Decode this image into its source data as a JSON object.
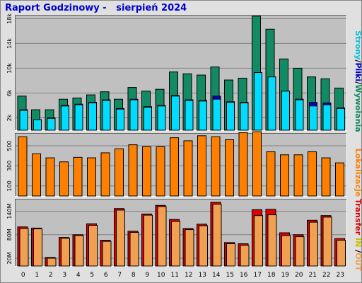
{
  "title": "Raport Godzinowy -   sierpień 2024",
  "colors": {
    "panel_bg": "#c0c0c0",
    "grid": "#808080",
    "hits": "#128a64",
    "files": "#0000cc",
    "pages": "#00dcff",
    "volume": "#ff8000",
    "kb_in": "#dd0000",
    "kb_out": "#f0a050"
  },
  "legend": {
    "top": [
      {
        "text": "Strony",
        "color": "#00c0e0"
      },
      {
        "text": "/",
        "color": "#000000"
      },
      {
        "text": "Pliki",
        "color": "#0000cc"
      },
      {
        "text": "/",
        "color": "#000000"
      },
      {
        "text": "Wywołania",
        "color": "#128a64"
      }
    ],
    "middle": [
      {
        "text": "Lokalizacje",
        "color": "#ff8000"
      }
    ],
    "bottom": [
      {
        "text": "Transfer",
        "color": "#dd0000"
      },
      {
        "text": " IN ",
        "color": "#d0c000"
      },
      {
        "text": "/",
        "color": "#000000"
      },
      {
        "text": "OUT",
        "color": "#f0a050"
      }
    ]
  },
  "chart_data": {
    "type": "bar",
    "categories": [
      "0",
      "1",
      "2",
      "3",
      "4",
      "5",
      "6",
      "7",
      "8",
      "9",
      "10",
      "11",
      "12",
      "13",
      "14",
      "15",
      "16",
      "17",
      "18",
      "19",
      "20",
      "21",
      "22",
      "23"
    ],
    "panels": [
      {
        "id": "requests",
        "ylim": [
          0,
          18500
        ],
        "ticks": [
          2000,
          6000,
          10000,
          14000,
          18000
        ],
        "tick_labels": [
          "2k",
          "6k",
          "10k",
          "14k",
          "18k"
        ],
        "series": [
          {
            "key": "hits",
            "values": [
              5500,
              3300,
              3300,
              5000,
              5200,
              5700,
              6200,
              5000,
              6900,
              6300,
              6600,
              9400,
              9100,
              8900,
              10200,
              8100,
              8400,
              18400,
              16300,
              11500,
              10000,
              8600,
              8300,
              6800
            ]
          },
          {
            "key": "files",
            "values": [
              3300,
              1700,
              2000,
              4000,
              4200,
              4500,
              4900,
              3500,
              5000,
              3800,
              4000,
              5600,
              4900,
              4800,
              5500,
              4600,
              4500,
              9300,
              8600,
              6300,
              5000,
              4500,
              4400,
              3600
            ]
          },
          {
            "key": "pages",
            "values": [
              3200,
              1700,
              1900,
              3900,
              4100,
              4400,
              4800,
              3400,
              4900,
              3700,
              3900,
              5500,
              4800,
              4700,
              5000,
              4500,
              4400,
              9300,
              8600,
              6300,
              4900,
              3900,
              4100,
              3500
            ]
          }
        ]
      },
      {
        "id": "visits",
        "ylim": [
          0,
          620
        ],
        "ticks": [
          100,
          300,
          500
        ],
        "tick_labels": [
          "100",
          "300",
          "500"
        ],
        "series": [
          {
            "key": "volume",
            "values": [
              590,
              420,
              380,
              340,
              385,
              380,
              430,
              470,
              510,
              490,
              490,
              580,
              550,
              600,
              590,
              560,
              630,
              640,
              440,
              410,
              410,
              440,
              380,
              330
            ]
          }
        ]
      },
      {
        "id": "transfer",
        "ylim": [
          0,
          170000000
        ],
        "ticks": [
          20000000,
          80000000,
          140000000
        ],
        "tick_labels": [
          "20M",
          "80M",
          "140M"
        ],
        "series": [
          {
            "key": "kb_in",
            "values": [
              100000000,
              97000000,
              22000000,
              73000000,
              80000000,
              108000000,
              66000000,
              147000000,
              89000000,
              133000000,
              155000000,
              119000000,
              96000000,
              107000000,
              163000000,
              60000000,
              57000000,
              144000000,
              145000000,
              85000000,
              80000000,
              117000000,
              129000000,
              70000000
            ]
          },
          {
            "key": "kb_out",
            "values": [
              96000000,
              95000000,
              20000000,
              71000000,
              78000000,
              104000000,
              63000000,
              143000000,
              86000000,
              130000000,
              152000000,
              114000000,
              93000000,
              103000000,
              158000000,
              57000000,
              53000000,
              129000000,
              131000000,
              78000000,
              75000000,
              112000000,
              125000000,
              66000000
            ]
          }
        ]
      }
    ]
  }
}
